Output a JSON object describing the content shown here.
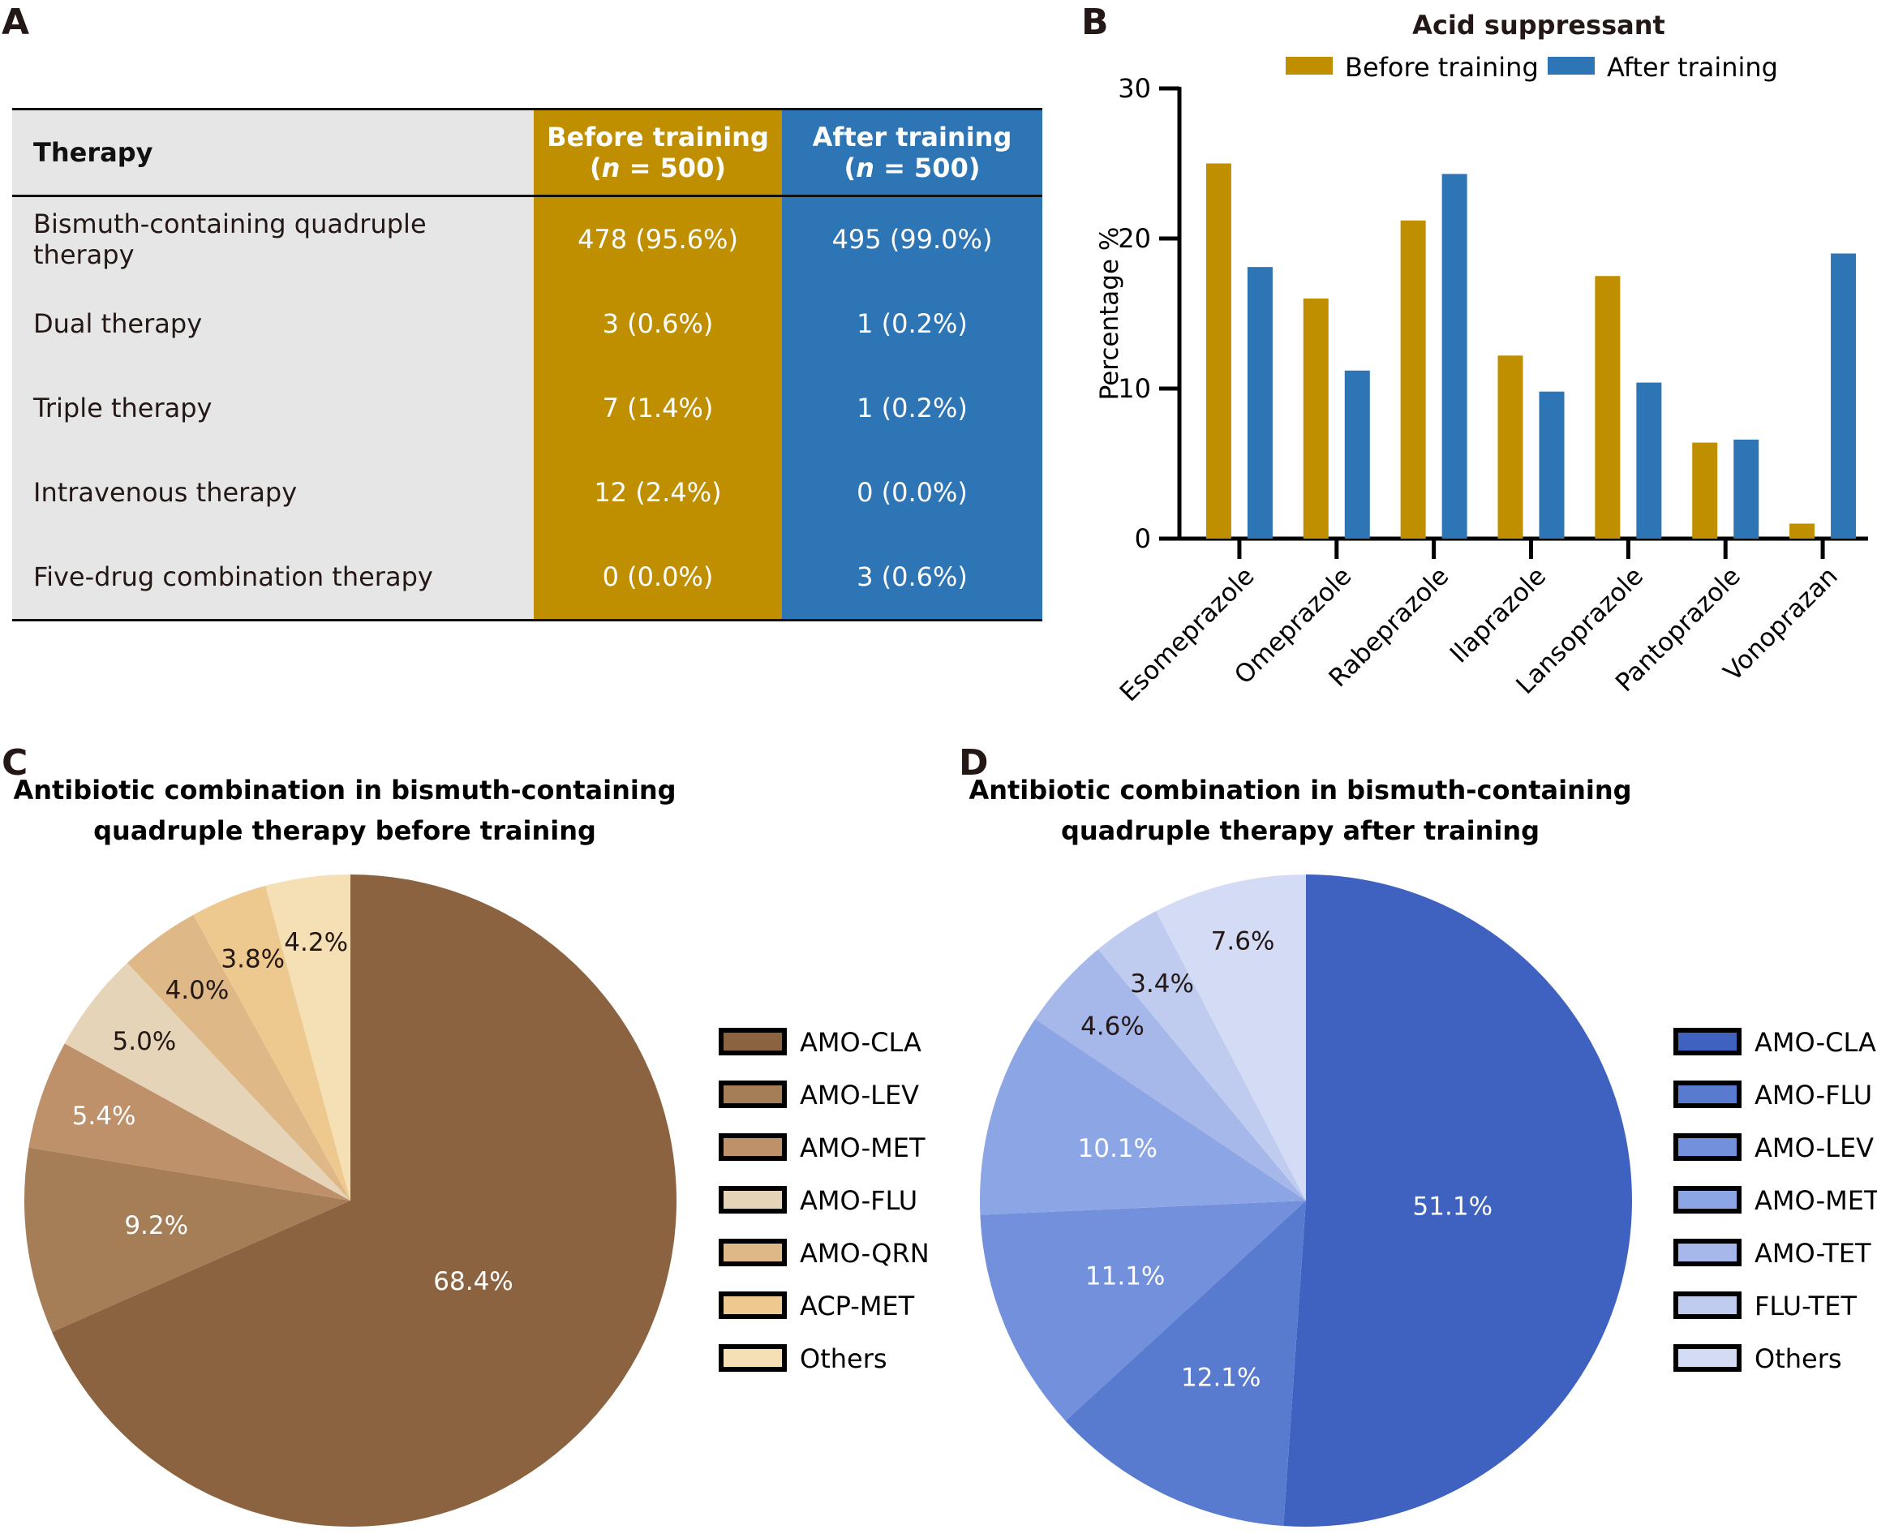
{
  "panels": {
    "a": "A",
    "b": "B",
    "c": "C",
    "d": "D"
  },
  "table": {
    "headers": [
      "Therapy",
      "Before training",
      "(n = 500)",
      "After training",
      "(n = 500)"
    ],
    "rows": [
      [
        "Bismuth-containing quadruple therapy",
        "478 (95.6%)",
        "495 (99.0%)"
      ],
      [
        "Dual therapy",
        "3 (0.6%)",
        "1 (0.2%)"
      ],
      [
        "Triple therapy",
        "7 (1.4%)",
        "1 (0.2%)"
      ],
      [
        "Intravenous therapy",
        "12 (2.4%)",
        "0 (0.0%)"
      ],
      [
        "Five-drug combination therapy",
        "0 (0.0%)",
        "3 (0.6%)"
      ]
    ],
    "colors": {
      "before": "#bf8f00",
      "after": "#2e75b6",
      "therapy": "#e6e6e6"
    }
  },
  "chart_data": [
    {
      "type": "bar",
      "title": "Acid suppressant",
      "ylabel": "Percentage %",
      "ylim": [
        0,
        30
      ],
      "yticks": [
        "0",
        "10",
        "20",
        "30"
      ],
      "grid": false,
      "legend": "top",
      "categories": [
        "Esomeprazole",
        "Omeprazole",
        "Rabeprazole",
        "Ilaprazole",
        "Lansoprazole",
        "Pantoprazole",
        "Vonoprazan"
      ],
      "series": [
        {
          "name": "Before training",
          "color": "#bf8f00",
          "values": [
            25.0,
            16.0,
            21.2,
            12.2,
            17.5,
            6.4,
            1.0
          ]
        },
        {
          "name": "After training",
          "color": "#2e75b6",
          "values": [
            18.1,
            11.2,
            24.3,
            9.8,
            10.4,
            6.6,
            19.0
          ]
        }
      ]
    },
    {
      "type": "pie",
      "title": [
        "Antibiotic combination in bismuth-containing",
        "quadruple therapy before training"
      ],
      "legend": "right",
      "labels": [
        "AMO-CLA",
        "AMO-LEV",
        "AMO-MET",
        "AMO-FLU",
        "AMO-QRN",
        "ACP-MET",
        "Others"
      ],
      "values": [
        68.4,
        9.2,
        5.4,
        5.0,
        4.0,
        3.8,
        4.2
      ],
      "data_labels": [
        "68.4%",
        "9.2%",
        "5.4%",
        "5.0%",
        "4.0%",
        "3.8%",
        "4.2%"
      ],
      "colors": [
        "#8b6340",
        "#a57d57",
        "#be916b",
        "#e6d4b8",
        "#deb887",
        "#edc98f",
        "#f5dfb5"
      ]
    },
    {
      "type": "pie",
      "title": [
        "Antibiotic combination in bismuth-containing",
        "quadruple therapy after training"
      ],
      "legend": "right",
      "labels": [
        "AMO-CLA",
        "AMO-FLU",
        "AMO-LEV",
        "AMO-MET",
        "AMO-TET",
        "FLU-TET",
        "Others"
      ],
      "values": [
        51.1,
        12.1,
        11.1,
        10.1,
        4.6,
        3.4,
        7.6
      ],
      "data_labels": [
        "51.1%",
        "12.1%",
        "11.1%",
        "10.1%",
        "4.6%",
        "3.4%",
        "7.6%"
      ],
      "colors": [
        "#3f62c0",
        "#587bd0",
        "#7390dc",
        "#8ca5e4",
        "#a6b8ea",
        "#bfccf0",
        "#d4dcf5"
      ]
    }
  ]
}
